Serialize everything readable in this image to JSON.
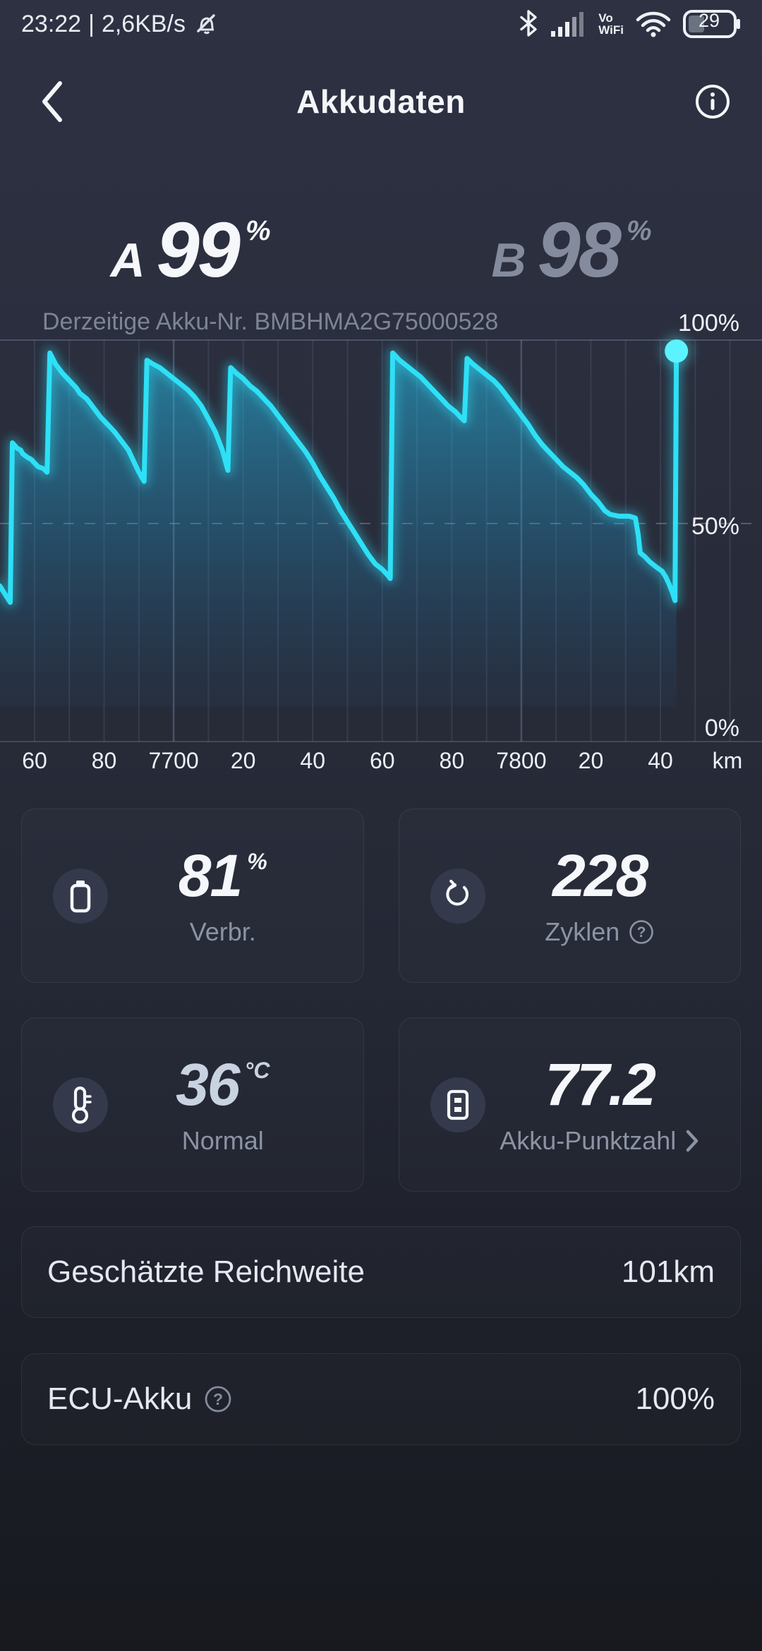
{
  "status_bar": {
    "time": "23:22",
    "sep": "|",
    "speed": "2,6KB/s",
    "vowifi_line1": "Vo",
    "vowifi_line2": "WiFi",
    "battery_percent": "29"
  },
  "header": {
    "title": "Akkudaten"
  },
  "batteries": {
    "a_label": "A",
    "a_value": "99",
    "a_unit": "%",
    "b_label": "B",
    "b_value": "98",
    "b_unit": "%"
  },
  "akku_line": {
    "text": "Derzeitige Akku-Nr. BMBHMA2G75000528"
  },
  "chart_data": {
    "type": "area",
    "xlabel_unit": "km",
    "x_axis": {
      "gridline_start_km": 7660,
      "gridline_end_km": 7860,
      "gridline_step_km": 10,
      "major_km": [
        7700,
        7800
      ],
      "tick_labels": [
        {
          "km": 7660,
          "label": "60"
        },
        {
          "km": 7680,
          "label": "80"
        },
        {
          "km": 7700,
          "label": "7700"
        },
        {
          "km": 7720,
          "label": "20"
        },
        {
          "km": 7740,
          "label": "40"
        },
        {
          "km": 7760,
          "label": "60"
        },
        {
          "km": 7780,
          "label": "80"
        },
        {
          "km": 7800,
          "label": "7800"
        },
        {
          "km": 7820,
          "label": "20"
        },
        {
          "km": 7840,
          "label": "40"
        }
      ],
      "unit_label": "km"
    },
    "y_axis": {
      "min": 0,
      "max": 100,
      "labels": [
        {
          "pct": 100,
          "label": "100%"
        },
        {
          "pct": 50,
          "label": "50%"
        },
        {
          "pct": 0,
          "label": "0%"
        }
      ],
      "dashed_pct": 50
    },
    "series": [
      {
        "name": "battery-charge-percent",
        "points": [
          [
            7650,
            33
          ],
          [
            7652,
            30
          ],
          [
            7653,
            28.5
          ],
          [
            7653.6,
            72
          ],
          [
            7655,
            70.5
          ],
          [
            7656,
            70
          ],
          [
            7656.6,
            69
          ],
          [
            7658,
            68
          ],
          [
            7659,
            67.5
          ],
          [
            7660,
            66.5
          ],
          [
            7661,
            65.5
          ],
          [
            7662.5,
            65
          ],
          [
            7663.6,
            64
          ],
          [
            7664.4,
            96.5
          ],
          [
            7666,
            93.5
          ],
          [
            7668,
            91
          ],
          [
            7670,
            89
          ],
          [
            7672,
            87
          ],
          [
            7673,
            85.5
          ],
          [
            7675,
            84
          ],
          [
            7677,
            81.5
          ],
          [
            7679,
            79
          ],
          [
            7681,
            77
          ],
          [
            7683,
            75
          ],
          [
            7685,
            72.5
          ],
          [
            7687,
            70
          ],
          [
            7688.5,
            67
          ],
          [
            7690,
            64
          ],
          [
            7691.5,
            61.5
          ],
          [
            7692.3,
            94.5
          ],
          [
            7694,
            93.5
          ],
          [
            7696,
            92.5
          ],
          [
            7698,
            91
          ],
          [
            7700,
            89.5
          ],
          [
            7702,
            88
          ],
          [
            7704,
            86.5
          ],
          [
            7706,
            84.5
          ],
          [
            7708,
            82
          ],
          [
            7710,
            78.5
          ],
          [
            7712,
            75
          ],
          [
            7714,
            70
          ],
          [
            7715.6,
            64.5
          ],
          [
            7716.4,
            92.5
          ],
          [
            7718,
            91
          ],
          [
            7720,
            89.5
          ],
          [
            7722,
            87.5
          ],
          [
            7724,
            86
          ],
          [
            7726,
            84
          ],
          [
            7728,
            82
          ],
          [
            7730,
            79.5
          ],
          [
            7732,
            77
          ],
          [
            7734,
            74.5
          ],
          [
            7736,
            72
          ],
          [
            7738,
            69.5
          ],
          [
            7740,
            66.5
          ],
          [
            7742,
            63
          ],
          [
            7744,
            60
          ],
          [
            7746,
            57
          ],
          [
            7748,
            53.5
          ],
          [
            7750,
            50.5
          ],
          [
            7752,
            47.5
          ],
          [
            7754,
            44.5
          ],
          [
            7756,
            41.5
          ],
          [
            7758,
            39
          ],
          [
            7760,
            37.5
          ],
          [
            7761.5,
            36
          ],
          [
            7762.3,
            35
          ],
          [
            7763,
            96.5
          ],
          [
            7765,
            94.5
          ],
          [
            7767,
            93
          ],
          [
            7769,
            91.5
          ],
          [
            7771,
            90
          ],
          [
            7773,
            88
          ],
          [
            7775,
            86
          ],
          [
            7777,
            84
          ],
          [
            7779,
            82
          ],
          [
            7781,
            80.5
          ],
          [
            7782.5,
            79
          ],
          [
            7783.6,
            78
          ],
          [
            7784.4,
            95
          ],
          [
            7786,
            93.5
          ],
          [
            7788,
            92
          ],
          [
            7790,
            90.5
          ],
          [
            7792,
            89
          ],
          [
            7794,
            87
          ],
          [
            7796,
            84.5
          ],
          [
            7798,
            82
          ],
          [
            7800,
            79.5
          ],
          [
            7802,
            77
          ],
          [
            7804,
            74
          ],
          [
            7806,
            71.5
          ],
          [
            7808,
            69.5
          ],
          [
            7810,
            67.5
          ],
          [
            7812,
            65.5
          ],
          [
            7814,
            64
          ],
          [
            7816,
            62.5
          ],
          [
            7818,
            60.5
          ],
          [
            7820,
            58
          ],
          [
            7822,
            56
          ],
          [
            7824,
            53.5
          ],
          [
            7825.5,
            52.5
          ],
          [
            7828,
            52
          ],
          [
            7831,
            52
          ],
          [
            7832.8,
            51.5
          ],
          [
            7833.6,
            47
          ],
          [
            7834.2,
            42
          ],
          [
            7835.5,
            41
          ],
          [
            7837,
            39.5
          ],
          [
            7839,
            38
          ],
          [
            7840.5,
            37
          ],
          [
            7841.5,
            35.5
          ],
          [
            7842.5,
            33.5
          ],
          [
            7843.5,
            31
          ],
          [
            7844.2,
            29
          ],
          [
            7844.6,
            97
          ]
        ]
      }
    ],
    "end_marker": true,
    "colors": {
      "line": "#2ee0f6",
      "dot": "#5bf3ff",
      "fill_top": "rgba(36,200,240,0.55)",
      "fill_mid": "rgba(32,160,215,0.30)",
      "fill_bottom": "rgba(28,110,170,0.05)",
      "grid": "rgba(148,163,200,0.14)",
      "grid_major": "rgba(160,178,220,0.28)",
      "dash": "rgba(205,218,240,0.28)",
      "axis": "rgba(150,165,200,0.25)",
      "label": "#edf1f7"
    }
  },
  "stats": [
    {
      "value": "81",
      "unit": "%",
      "label": "Verbr."
    },
    {
      "value": "228",
      "unit": "",
      "label": "Zyklen"
    },
    {
      "value": "36",
      "unit": "°C",
      "label": "Normal"
    },
    {
      "value": "77.2",
      "unit": "",
      "label": "Akku-Punktzahl"
    }
  ],
  "rows": [
    {
      "label": "Geschätzte Reichweite",
      "value": "101km"
    },
    {
      "label": "ECU-Akku",
      "value": "100%"
    }
  ]
}
